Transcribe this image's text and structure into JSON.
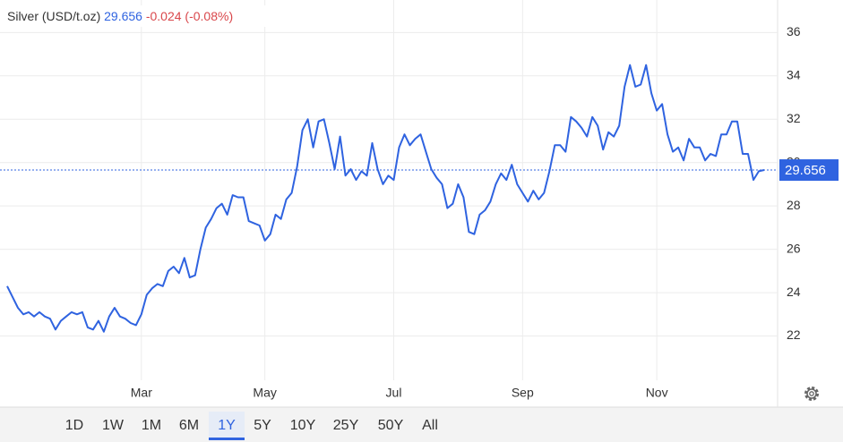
{
  "header": {
    "name": "Silver (USD/t.oz)",
    "price": 29.656,
    "change": "-0.024 (-0.08%)"
  },
  "chart_data": {
    "type": "line",
    "categories": [
      null,
      null,
      null,
      null,
      null,
      null,
      null,
      null,
      null,
      null,
      null,
      null,
      null,
      null,
      null,
      null,
      null,
      null,
      null,
      null,
      null,
      null,
      null,
      null,
      null,
      "Mar",
      null,
      null,
      null,
      null,
      null,
      null,
      null,
      null,
      null,
      null,
      null,
      null,
      null,
      null,
      null,
      null,
      null,
      null,
      null,
      null,
      null,
      null,
      "May",
      null,
      null,
      null,
      null,
      null,
      null,
      null,
      null,
      null,
      null,
      null,
      null,
      null,
      null,
      null,
      null,
      null,
      null,
      null,
      null,
      null,
      null,
      null,
      "Jul",
      null,
      null,
      null,
      null,
      null,
      null,
      null,
      null,
      null,
      null,
      null,
      null,
      null,
      null,
      null,
      null,
      null,
      null,
      null,
      null,
      null,
      null,
      null,
      "Sep",
      null,
      null,
      null,
      null,
      null,
      null,
      null,
      null,
      null,
      null,
      null,
      null,
      null,
      null,
      null,
      null,
      null,
      null,
      null,
      null,
      null,
      null,
      null,
      null,
      "Nov",
      null,
      null,
      null,
      null,
      null,
      null,
      null,
      null,
      null,
      null,
      null,
      null,
      null,
      null,
      null,
      null,
      null,
      null,
      null,
      null
    ],
    "series": [
      {
        "name": "Silver",
        "color": "#2f63e0",
        "values": [
          24.3,
          23.8,
          23.3,
          23.0,
          23.1,
          22.9,
          23.1,
          22.9,
          22.8,
          22.3,
          22.7,
          22.9,
          23.1,
          23.0,
          23.1,
          22.4,
          22.3,
          22.7,
          22.2,
          22.9,
          23.3,
          22.9,
          22.8,
          22.6,
          22.5,
          23.0,
          23.9,
          24.2,
          24.4,
          24.3,
          25.0,
          25.2,
          24.9,
          25.6,
          24.7,
          24.8,
          26.0,
          27.0,
          27.4,
          27.9,
          28.1,
          27.6,
          28.5,
          28.4,
          28.4,
          27.3,
          27.2,
          27.1,
          26.4,
          26.7,
          27.6,
          27.4,
          28.3,
          28.6,
          29.8,
          31.5,
          32.0,
          30.7,
          31.9,
          32.0,
          30.9,
          29.7,
          31.2,
          29.4,
          29.7,
          29.2,
          29.6,
          29.4,
          30.9,
          29.7,
          29.0,
          29.4,
          29.2,
          30.7,
          31.3,
          30.8,
          31.1,
          31.3,
          30.5,
          29.7,
          29.3,
          29.0,
          27.9,
          28.1,
          29.0,
          28.4,
          26.8,
          26.7,
          27.6,
          27.8,
          28.2,
          29.0,
          29.5,
          29.2,
          29.9,
          29.0,
          28.6,
          28.2,
          28.7,
          28.3,
          28.6,
          29.6,
          30.8,
          30.8,
          30.5,
          32.1,
          31.9,
          31.6,
          31.2,
          32.1,
          31.7,
          30.6,
          31.4,
          31.2,
          31.7,
          33.5,
          34.5,
          33.5,
          33.6,
          34.5,
          33.2,
          32.4,
          32.7,
          31.3,
          30.5,
          30.7,
          30.1,
          31.1,
          30.7,
          30.7,
          30.1,
          30.4,
          30.3,
          31.3,
          31.3,
          31.9,
          31.9,
          30.4,
          30.4,
          29.2,
          29.6,
          29.656
        ]
      }
    ],
    "ylim": [
      20,
      37.5
    ],
    "yticks": [
      22,
      24,
      26,
      28,
      30,
      32,
      34,
      36
    ],
    "grid": true
  },
  "range_buttons": [
    "1D",
    "1W",
    "1M",
    "6M",
    "1Y",
    "5Y",
    "10Y",
    "25Y",
    "50Y",
    "All"
  ],
  "selected_range": 4
}
